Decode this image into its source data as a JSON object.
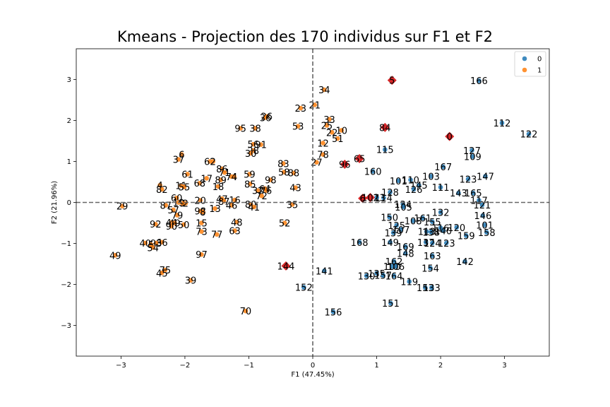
{
  "chart_data": {
    "type": "scatter",
    "title": "Kmeans - Projection des 170 individus sur F1 et F2",
    "xlabel": "F1 (47.45%)",
    "ylabel": "F2 (21.96%)",
    "xlim": [
      -3.7,
      3.7
    ],
    "ylim": [
      -3.75,
      3.75
    ],
    "xticks": [
      -3,
      -2,
      -1,
      0,
      1,
      2,
      3
    ],
    "yticks": [
      -3,
      -2,
      -1,
      0,
      1,
      2,
      3
    ],
    "legend": {
      "placement": "top-right",
      "entries": [
        "0",
        "1"
      ]
    },
    "colors": {
      "0": "#1f77b4",
      "1": "#ff7f0e",
      "centroid": "#d62728"
    },
    "reference_lines": {
      "x": 0,
      "y": 0,
      "style": "dashed"
    },
    "series": [
      {
        "name": "0",
        "points": [
          {
            "label": "166",
            "x": 2.6,
            "y": 2.97
          },
          {
            "label": "112",
            "x": 2.96,
            "y": 1.94
          },
          {
            "label": "122",
            "x": 3.38,
            "y": 1.67
          },
          {
            "label": "127",
            "x": 2.49,
            "y": 1.27
          },
          {
            "label": "109",
            "x": 2.5,
            "y": 1.12
          },
          {
            "label": "167",
            "x": 2.04,
            "y": 0.87
          },
          {
            "label": "115",
            "x": 1.13,
            "y": 1.29
          },
          {
            "label": "160",
            "x": 0.94,
            "y": 0.76
          },
          {
            "label": "103",
            "x": 1.85,
            "y": 0.64
          },
          {
            "label": "147",
            "x": 2.7,
            "y": 0.64
          },
          {
            "label": "123",
            "x": 2.43,
            "y": 0.57
          },
          {
            "label": "110",
            "x": 1.53,
            "y": 0.55
          },
          {
            "label": "101",
            "x": 1.34,
            "y": 0.53
          },
          {
            "label": "145",
            "x": 1.66,
            "y": 0.42
          },
          {
            "label": "111",
            "x": 2.0,
            "y": 0.37
          },
          {
            "label": "126",
            "x": 1.58,
            "y": 0.32
          },
          {
            "label": "143",
            "x": 2.28,
            "y": 0.23
          },
          {
            "label": "165",
            "x": 2.51,
            "y": 0.23
          },
          {
            "label": "128",
            "x": 1.21,
            "y": 0.25
          },
          {
            "label": "117",
            "x": 2.6,
            "y": 0.05
          },
          {
            "label": "121",
            "x": 2.65,
            "y": -0.06
          },
          {
            "label": "114",
            "x": 1.11,
            "y": 0.11
          },
          {
            "label": "113",
            "x": 1.0,
            "y": 0.12
          },
          {
            "label": "134",
            "x": 1.41,
            "y": -0.04
          },
          {
            "label": "105",
            "x": 1.42,
            "y": -0.11
          },
          {
            "label": "132",
            "x": 2.0,
            "y": -0.24
          },
          {
            "label": "146",
            "x": 2.66,
            "y": -0.32
          },
          {
            "label": "150",
            "x": 1.2,
            "y": -0.36
          },
          {
            "label": "161",
            "x": 1.72,
            "y": -0.38
          },
          {
            "label": "108",
            "x": 1.57,
            "y": -0.45
          },
          {
            "label": "155",
            "x": 1.87,
            "y": -0.47
          },
          {
            "label": "101",
            "x": 2.69,
            "y": -0.55
          },
          {
            "label": "125",
            "x": 1.31,
            "y": -0.56
          },
          {
            "label": "120",
            "x": 2.25,
            "y": -0.61
          },
          {
            "label": "116",
            "x": 2.0,
            "y": -0.62
          },
          {
            "label": "107",
            "x": 1.38,
            "y": -0.66
          },
          {
            "label": "118",
            "x": 1.78,
            "y": -0.71
          },
          {
            "label": "138",
            "x": 1.85,
            "y": -0.72
          },
          {
            "label": "140",
            "x": 2.04,
            "y": -0.69
          },
          {
            "label": "158",
            "x": 2.72,
            "y": -0.73
          },
          {
            "label": "139",
            "x": 1.26,
            "y": -0.74
          },
          {
            "label": "159",
            "x": 2.4,
            "y": -0.81
          },
          {
            "label": "149",
            "x": 1.21,
            "y": -0.97
          },
          {
            "label": "137",
            "x": 1.77,
            "y": -0.97
          },
          {
            "label": "124",
            "x": 1.87,
            "y": -0.99
          },
          {
            "label": "123",
            "x": 2.09,
            "y": -0.99
          },
          {
            "label": "169",
            "x": 1.45,
            "y": -1.08
          },
          {
            "label": "148",
            "x": 1.45,
            "y": -1.24
          },
          {
            "label": "163",
            "x": 1.87,
            "y": -1.3
          },
          {
            "label": "142",
            "x": 2.38,
            "y": -1.44
          },
          {
            "label": "162",
            "x": 1.27,
            "y": -1.44
          },
          {
            "label": "100",
            "x": 1.24,
            "y": -1.56
          },
          {
            "label": "106",
            "x": 1.3,
            "y": -1.56
          },
          {
            "label": "154",
            "x": 1.84,
            "y": -1.6
          },
          {
            "label": "141",
            "x": 0.18,
            "y": -1.67
          },
          {
            "label": "135",
            "x": 1.0,
            "y": -1.73
          },
          {
            "label": "157",
            "x": 1.1,
            "y": -1.78
          },
          {
            "label": "130",
            "x": 0.84,
            "y": -1.79
          },
          {
            "label": "164",
            "x": 1.27,
            "y": -1.79
          },
          {
            "label": "119",
            "x": 1.51,
            "y": -1.93
          },
          {
            "label": "168",
            "x": 0.73,
            "y": -0.97
          },
          {
            "label": "152",
            "x": -0.14,
            "y": -2.07
          },
          {
            "label": "153",
            "x": 1.76,
            "y": -2.08
          },
          {
            "label": "133",
            "x": 1.86,
            "y": -2.08
          },
          {
            "label": "151",
            "x": 1.22,
            "y": -2.46
          },
          {
            "label": "156",
            "x": 0.32,
            "y": -2.67
          }
        ]
      },
      {
        "name": "1",
        "points": [
          {
            "label": "34",
            "x": 0.18,
            "y": 2.75
          },
          {
            "label": "21",
            "x": 0.03,
            "y": 2.38
          },
          {
            "label": "23",
            "x": -0.19,
            "y": 2.3
          },
          {
            "label": "26",
            "x": -0.72,
            "y": 2.1
          },
          {
            "label": "36",
            "x": -0.74,
            "y": 2.07
          },
          {
            "label": "33",
            "x": 0.26,
            "y": 2.03
          },
          {
            "label": "25",
            "x": 0.22,
            "y": 1.88
          },
          {
            "label": "95",
            "x": -1.13,
            "y": 1.81
          },
          {
            "label": "38",
            "x": -0.9,
            "y": 1.81
          },
          {
            "label": "53",
            "x": -0.23,
            "y": 1.86
          },
          {
            "label": "10",
            "x": 0.45,
            "y": 1.76
          },
          {
            "label": "22",
            "x": 0.3,
            "y": 1.71
          },
          {
            "label": "51",
            "x": 0.39,
            "y": 1.56
          },
          {
            "label": "12",
            "x": 0.16,
            "y": 1.45
          },
          {
            "label": "56",
            "x": -0.93,
            "y": 1.42
          },
          {
            "label": "91",
            "x": -0.81,
            "y": 1.41
          },
          {
            "label": "28",
            "x": -0.93,
            "y": 1.27
          },
          {
            "label": "30",
            "x": -0.97,
            "y": 1.2
          },
          {
            "label": "78",
            "x": 0.16,
            "y": 1.17
          },
          {
            "label": "6",
            "x": -2.05,
            "y": 1.17
          },
          {
            "label": "37",
            "x": -2.1,
            "y": 1.05
          },
          {
            "label": "27",
            "x": 0.06,
            "y": 0.98
          },
          {
            "label": "62",
            "x": -1.61,
            "y": 1.0
          },
          {
            "label": "2",
            "x": -1.56,
            "y": 1.0
          },
          {
            "label": "83",
            "x": -0.46,
            "y": 0.95
          },
          {
            "label": "86",
            "x": -1.42,
            "y": 0.82
          },
          {
            "label": "71",
            "x": -1.38,
            "y": 0.73
          },
          {
            "label": "58",
            "x": -0.45,
            "y": 0.74
          },
          {
            "label": "88",
            "x": -0.3,
            "y": 0.72
          },
          {
            "label": "59",
            "x": -0.99,
            "y": 0.69
          },
          {
            "label": "61",
            "x": -1.96,
            "y": 0.69
          },
          {
            "label": "74",
            "x": -1.27,
            "y": 0.63
          },
          {
            "label": "4",
            "x": -1.23,
            "y": 0.63
          },
          {
            "label": "17",
            "x": -1.66,
            "y": 0.59
          },
          {
            "label": "89",
            "x": -1.44,
            "y": 0.55
          },
          {
            "label": "98",
            "x": -0.66,
            "y": 0.55
          },
          {
            "label": "68",
            "x": -1.77,
            "y": 0.47
          },
          {
            "label": "85",
            "x": -0.98,
            "y": 0.45
          },
          {
            "label": "18",
            "x": -1.48,
            "y": 0.39
          },
          {
            "label": "11",
            "x": -2.06,
            "y": 0.41
          },
          {
            "label": "55",
            "x": -2.01,
            "y": 0.38
          },
          {
            "label": "4",
            "x": -2.39,
            "y": 0.42
          },
          {
            "label": "82",
            "x": -2.36,
            "y": 0.32
          },
          {
            "label": "64",
            "x": -0.75,
            "y": 0.34
          },
          {
            "label": "76",
            "x": -0.73,
            "y": 0.29
          },
          {
            "label": "43",
            "x": -0.27,
            "y": 0.36
          },
          {
            "label": "32",
            "x": -0.86,
            "y": 0.29
          },
          {
            "label": "72",
            "x": -0.8,
            "y": 0.16
          },
          {
            "label": "47",
            "x": -1.42,
            "y": 0.09
          },
          {
            "label": "60",
            "x": -2.13,
            "y": 0.11
          },
          {
            "label": "20",
            "x": -1.76,
            "y": 0.05
          },
          {
            "label": "16",
            "x": -1.22,
            "y": 0.06
          },
          {
            "label": "87",
            "x": -1.39,
            "y": 0.03
          },
          {
            "label": "19",
            "x": -2.1,
            "y": 0.0
          },
          {
            "label": "35",
            "x": -0.32,
            "y": -0.05
          },
          {
            "label": "80",
            "x": -0.97,
            "y": -0.04
          },
          {
            "label": "9",
            "x": -2.04,
            "y": -0.02
          },
          {
            "label": "2",
            "x": -1.99,
            "y": -0.02
          },
          {
            "label": "87",
            "x": -2.3,
            "y": -0.07
          },
          {
            "label": "46",
            "x": -1.27,
            "y": -0.07
          },
          {
            "label": "41",
            "x": -0.92,
            "y": -0.11
          },
          {
            "label": "29",
            "x": -2.98,
            "y": -0.09
          },
          {
            "label": "57",
            "x": -2.18,
            "y": -0.18
          },
          {
            "label": "13",
            "x": -1.53,
            "y": -0.15
          },
          {
            "label": "98",
            "x": -1.76,
            "y": -0.21
          },
          {
            "label": "8",
            "x": -1.72,
            "y": -0.23
          },
          {
            "label": "79",
            "x": -2.12,
            "y": -0.31
          },
          {
            "label": "48",
            "x": -1.19,
            "y": -0.48
          },
          {
            "label": "52",
            "x": -0.44,
            "y": -0.5
          },
          {
            "label": "92",
            "x": -2.46,
            "y": -0.53
          },
          {
            "label": "44",
            "x": -2.21,
            "y": -0.49
          },
          {
            "label": "49",
            "x": -2.16,
            "y": -0.5
          },
          {
            "label": "50",
            "x": -2.02,
            "y": -0.54
          },
          {
            "label": "15",
            "x": -1.74,
            "y": -0.5
          },
          {
            "label": "90",
            "x": -2.21,
            "y": -0.58
          },
          {
            "label": "63",
            "x": -1.22,
            "y": -0.69
          },
          {
            "label": "73",
            "x": -1.74,
            "y": -0.71
          },
          {
            "label": "77",
            "x": -1.5,
            "y": -0.78
          },
          {
            "label": "66",
            "x": -2.36,
            "y": -0.97
          },
          {
            "label": "40",
            "x": -2.62,
            "y": -0.99
          },
          {
            "label": "93",
            "x": -2.45,
            "y": -0.99
          },
          {
            "label": "5",
            "x": -2.53,
            "y": -1.03
          },
          {
            "label": "54",
            "x": -2.5,
            "y": -1.1
          },
          {
            "label": "49",
            "x": -3.09,
            "y": -1.29
          },
          {
            "label": "97",
            "x": -1.74,
            "y": -1.27
          },
          {
            "label": "75",
            "x": -2.31,
            "y": -1.65
          },
          {
            "label": "45",
            "x": -2.36,
            "y": -1.72
          },
          {
            "label": "39",
            "x": -1.91,
            "y": -1.9
          },
          {
            "label": "70",
            "x": -1.05,
            "y": -2.65
          }
        ]
      }
    ],
    "highlighted": [
      {
        "label": "5",
        "x": 1.24,
        "y": 2.98
      },
      {
        "label": "84",
        "x": 1.13,
        "y": 1.83
      },
      {
        "label": "0",
        "x": 2.14,
        "y": 1.61
      },
      {
        "label": "96",
        "x": 0.5,
        "y": 0.93
      },
      {
        "label": "65",
        "x": 0.73,
        "y": 1.07
      },
      {
        "label": "6",
        "x": 0.78,
        "y": 0.1
      },
      {
        "label": "102",
        "x": 0.9,
        "y": 0.12
      },
      {
        "label": "144",
        "x": -0.42,
        "y": -1.55
      }
    ]
  }
}
